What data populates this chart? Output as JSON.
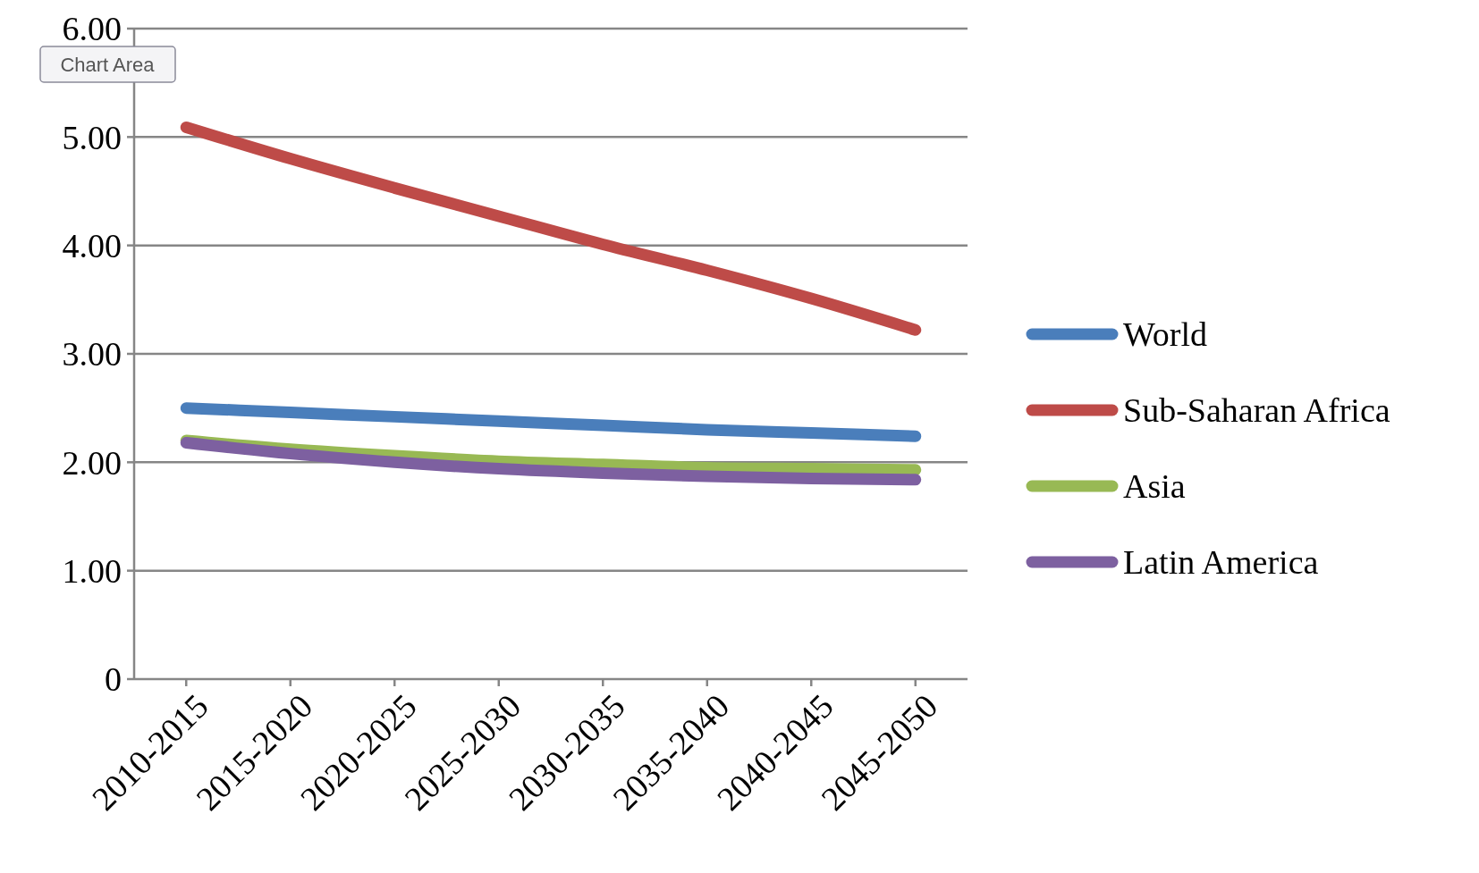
{
  "chart_data": {
    "type": "line",
    "categories": [
      "2010-2015",
      "2015-2020",
      "2020-2025",
      "2025-2030",
      "2030-2035",
      "2035-2040",
      "2040-2045",
      "2045-2050"
    ],
    "series": [
      {
        "name": "World",
        "color": "#4a7ebb",
        "values": [
          2.5,
          2.46,
          2.42,
          2.38,
          2.34,
          2.3,
          2.27,
          2.24
        ]
      },
      {
        "name": "Sub-Saharan Africa",
        "color": "#be4b48",
        "values": [
          5.09,
          4.8,
          4.53,
          4.27,
          4.01,
          3.77,
          3.51,
          3.22
        ]
      },
      {
        "name": "Asia",
        "color": "#98b954",
        "values": [
          2.2,
          2.12,
          2.06,
          2.01,
          1.98,
          1.95,
          1.94,
          1.93
        ]
      },
      {
        "name": "Latin America",
        "color": "#7d60a0",
        "values": [
          2.18,
          2.08,
          2.0,
          1.94,
          1.9,
          1.87,
          1.85,
          1.84
        ]
      }
    ],
    "ylim": [
      0,
      6
    ],
    "yticks": [
      {
        "value": 0,
        "label": "0"
      },
      {
        "value": 1,
        "label": "1.00"
      },
      {
        "value": 2,
        "label": "2.00"
      },
      {
        "value": 3,
        "label": "3.00"
      },
      {
        "value": 4,
        "label": "4.00"
      },
      {
        "value": 5,
        "label": "5.00"
      },
      {
        "value": 6,
        "label": "6.00"
      }
    ],
    "grid": "y",
    "legend": "right",
    "marker": "none",
    "line_style": "solid",
    "annotations": [
      "Chart Area"
    ]
  }
}
